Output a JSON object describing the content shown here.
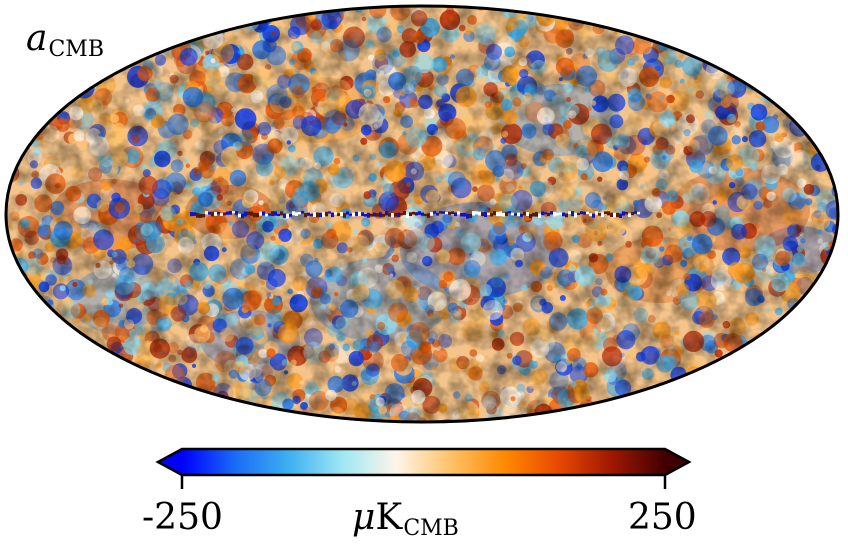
{
  "map": {
    "label_var": "a",
    "label_sub": "CMB",
    "projection": "mollweide"
  },
  "colorbar": {
    "min_label": "-250",
    "max_label": "250",
    "unit_var": "μ",
    "unit_main": "K",
    "unit_sub": "CMB",
    "min_value": -250,
    "max_value": 250,
    "colors": [
      "#0000ff",
      "#1a6cf5",
      "#3fb0f0",
      "#9fe8f4",
      "#fff5e8",
      "#ffc26a",
      "#ff8a00",
      "#e84a00",
      "#a01800",
      "#400000"
    ]
  }
}
